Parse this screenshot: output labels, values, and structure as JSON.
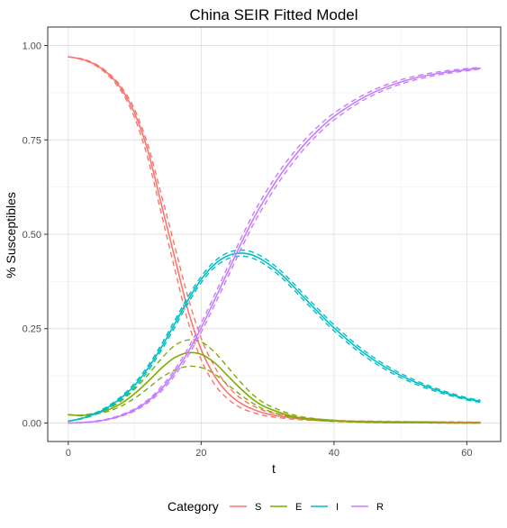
{
  "chart_data": {
    "type": "line",
    "title": "China SEIR Fitted Model",
    "xlabel": "t",
    "ylabel": "% Susceptibles",
    "xlim": [
      -3.1,
      65.1
    ],
    "ylim": [
      -0.049,
      1.049
    ],
    "x_ticks": [
      0,
      20,
      40,
      60
    ],
    "x_tick_labels": [
      "0",
      "20",
      "40",
      "60"
    ],
    "y_ticks": [
      0,
      0.25,
      0.5,
      0.75,
      1.0
    ],
    "y_tick_labels": [
      "0.00",
      "0.25",
      "0.50",
      "0.75",
      "1.00"
    ],
    "grid": true,
    "legend_position": "bottom",
    "legend_title": "Category",
    "series": [
      {
        "name": "S",
        "color": "#F8766D",
        "x": [
          0,
          2,
          4,
          6,
          8,
          10,
          12,
          14,
          16,
          18,
          20,
          22,
          24,
          26,
          28,
          30,
          34,
          38,
          42,
          46,
          50,
          54,
          58,
          62
        ],
        "values": [
          0.97,
          0.964,
          0.95,
          0.925,
          0.885,
          0.82,
          0.72,
          0.58,
          0.44,
          0.3,
          0.195,
          0.125,
          0.08,
          0.052,
          0.035,
          0.024,
          0.013,
          0.008,
          0.005,
          0.004,
          0.003,
          0.003,
          0.002,
          0.002
        ],
        "upper": [
          0.97,
          0.965,
          0.952,
          0.928,
          0.89,
          0.83,
          0.735,
          0.605,
          0.47,
          0.335,
          0.225,
          0.15,
          0.098,
          0.065,
          0.044,
          0.03,
          0.016,
          0.01,
          0.006,
          0.005,
          0.004,
          0.003,
          0.003,
          0.002
        ],
        "lower": [
          0.97,
          0.963,
          0.948,
          0.921,
          0.878,
          0.808,
          0.7,
          0.555,
          0.41,
          0.27,
          0.168,
          0.103,
          0.064,
          0.04,
          0.027,
          0.018,
          0.01,
          0.006,
          0.004,
          0.003,
          0.002,
          0.002,
          0.002,
          0.001
        ]
      },
      {
        "name": "E",
        "color": "#7CAE00",
        "x": [
          0,
          2,
          4,
          6,
          8,
          10,
          12,
          14,
          16,
          18,
          20,
          22,
          24,
          26,
          28,
          30,
          34,
          38,
          42,
          46,
          50,
          54,
          58,
          62
        ],
        "values": [
          0.022,
          0.02,
          0.025,
          0.035,
          0.052,
          0.078,
          0.11,
          0.145,
          0.173,
          0.186,
          0.182,
          0.16,
          0.125,
          0.09,
          0.06,
          0.04,
          0.017,
          0.008,
          0.004,
          0.002,
          0.001,
          0.001,
          0.0,
          0.0
        ],
        "upper": [
          0.022,
          0.021,
          0.027,
          0.039,
          0.059,
          0.09,
          0.128,
          0.17,
          0.205,
          0.22,
          0.215,
          0.188,
          0.148,
          0.107,
          0.072,
          0.048,
          0.021,
          0.01,
          0.005,
          0.002,
          0.001,
          0.001,
          0.0,
          0.0
        ],
        "lower": [
          0.022,
          0.019,
          0.023,
          0.031,
          0.045,
          0.066,
          0.092,
          0.12,
          0.14,
          0.15,
          0.147,
          0.13,
          0.102,
          0.074,
          0.05,
          0.033,
          0.014,
          0.006,
          0.003,
          0.001,
          0.001,
          0.0,
          0.0,
          0.0
        ]
      },
      {
        "name": "I",
        "color": "#00BFC4",
        "x": [
          0,
          2,
          4,
          6,
          8,
          10,
          12,
          14,
          16,
          18,
          20,
          22,
          24,
          26,
          28,
          30,
          32,
          34,
          36,
          38,
          40,
          44,
          48,
          52,
          56,
          60,
          62
        ],
        "values": [
          0.005,
          0.012,
          0.024,
          0.042,
          0.067,
          0.1,
          0.145,
          0.2,
          0.262,
          0.325,
          0.38,
          0.42,
          0.443,
          0.45,
          0.443,
          0.423,
          0.395,
          0.36,
          0.323,
          0.287,
          0.252,
          0.192,
          0.145,
          0.11,
          0.084,
          0.064,
          0.058
        ],
        "upper": [
          0.005,
          0.013,
          0.026,
          0.045,
          0.071,
          0.106,
          0.152,
          0.208,
          0.271,
          0.334,
          0.388,
          0.428,
          0.451,
          0.458,
          0.451,
          0.431,
          0.403,
          0.368,
          0.331,
          0.295,
          0.26,
          0.199,
          0.151,
          0.115,
          0.088,
          0.067,
          0.061
        ],
        "lower": [
          0.005,
          0.011,
          0.022,
          0.039,
          0.063,
          0.094,
          0.138,
          0.192,
          0.253,
          0.316,
          0.372,
          0.412,
          0.435,
          0.442,
          0.435,
          0.415,
          0.387,
          0.352,
          0.315,
          0.279,
          0.244,
          0.185,
          0.139,
          0.105,
          0.08,
          0.061,
          0.055
        ]
      },
      {
        "name": "R",
        "color": "#C77CFF",
        "x": [
          0,
          2,
          4,
          6,
          8,
          10,
          12,
          14,
          16,
          18,
          20,
          22,
          24,
          26,
          28,
          30,
          32,
          34,
          36,
          38,
          40,
          44,
          48,
          52,
          56,
          60,
          62
        ],
        "values": [
          0.0,
          0.001,
          0.004,
          0.01,
          0.02,
          0.035,
          0.058,
          0.09,
          0.133,
          0.187,
          0.252,
          0.325,
          0.4,
          0.475,
          0.545,
          0.605,
          0.659,
          0.706,
          0.747,
          0.782,
          0.812,
          0.858,
          0.891,
          0.913,
          0.927,
          0.936,
          0.94
        ],
        "upper": [
          0.0,
          0.001,
          0.005,
          0.011,
          0.022,
          0.038,
          0.062,
          0.096,
          0.141,
          0.197,
          0.264,
          0.338,
          0.414,
          0.489,
          0.559,
          0.619,
          0.672,
          0.718,
          0.758,
          0.792,
          0.821,
          0.865,
          0.897,
          0.918,
          0.931,
          0.939,
          0.942
        ],
        "lower": [
          0.0,
          0.001,
          0.003,
          0.009,
          0.018,
          0.032,
          0.054,
          0.084,
          0.125,
          0.177,
          0.24,
          0.312,
          0.386,
          0.461,
          0.531,
          0.591,
          0.646,
          0.694,
          0.736,
          0.772,
          0.803,
          0.851,
          0.885,
          0.908,
          0.923,
          0.933,
          0.938
        ]
      }
    ]
  }
}
